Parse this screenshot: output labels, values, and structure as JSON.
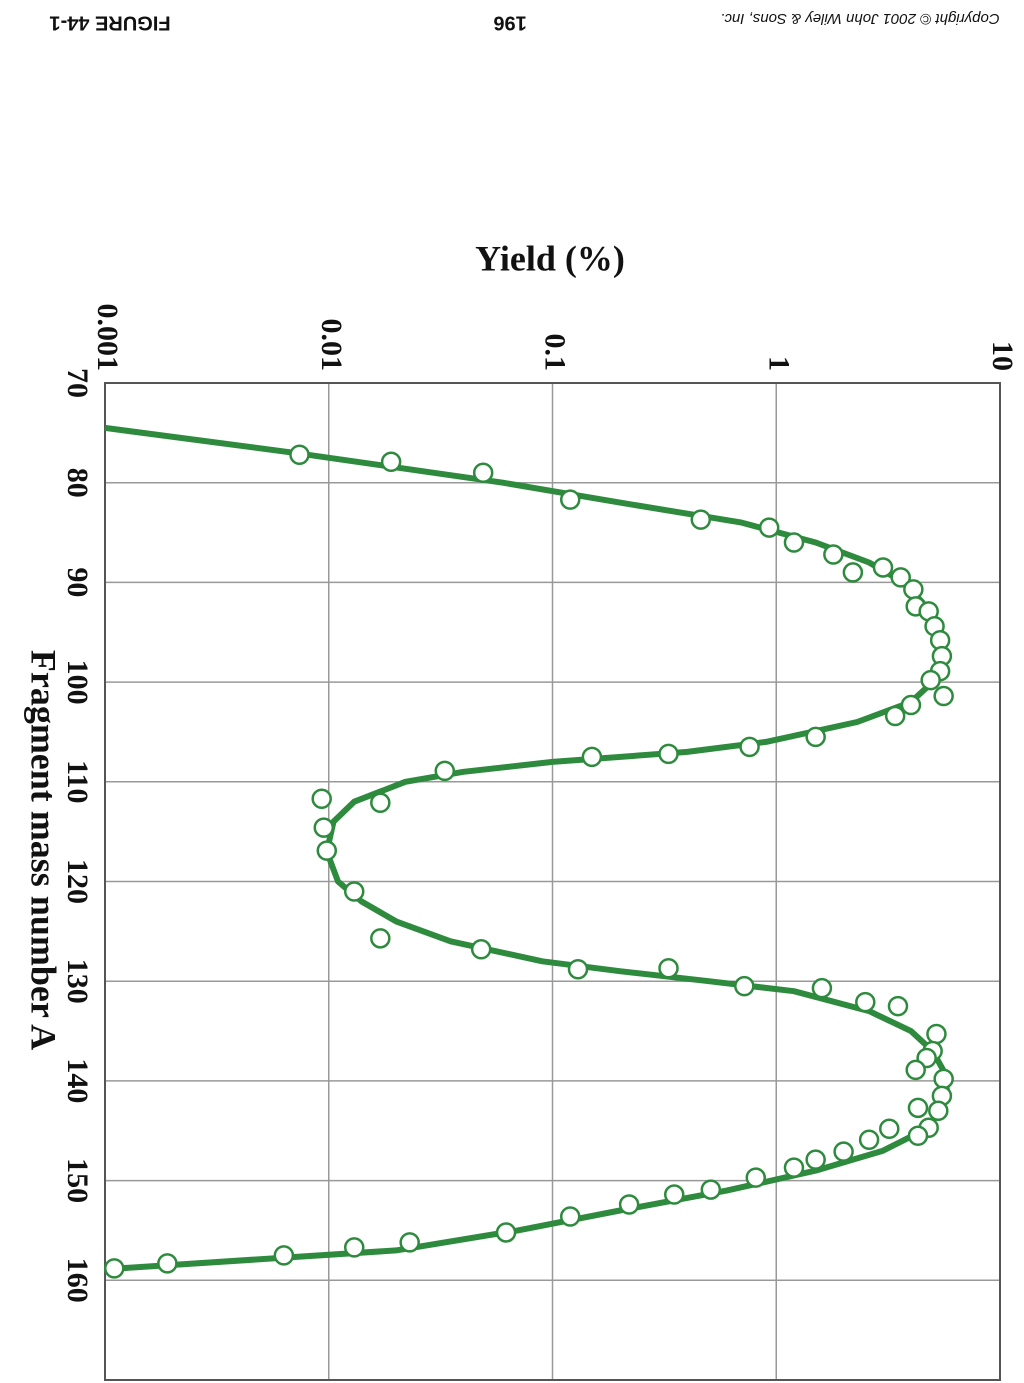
{
  "header": {
    "figure": "FIGURE 44-1",
    "page": "196",
    "copyright": "Copyright © 2001 John Wiley & Sons, Inc."
  },
  "chart_data": {
    "type": "scatter",
    "xlabel": "Fragment mass number A",
    "ylabel": "Yield (%)",
    "xlim": [
      70,
      170
    ],
    "xticks": [
      70,
      80,
      90,
      100,
      110,
      120,
      130,
      140,
      150,
      160
    ],
    "ylim": [
      0.001,
      10
    ],
    "yticks": [
      0.001,
      0.01,
      0.1,
      1,
      10
    ],
    "log_y": true,
    "grid": true,
    "color": "#2e8b3e",
    "points": {
      "x": [
        77.2,
        77.9,
        79,
        81.7,
        83.7,
        84.5,
        86,
        87.2,
        89,
        88.5,
        89.5,
        90.7,
        92.4,
        92.9,
        94.4,
        95.8,
        97.4,
        98.9,
        99.8,
        101.4,
        102.3,
        103.4,
        105.5,
        106.5,
        107.2,
        107.5,
        108.9,
        112.1,
        111.7,
        114.6,
        116.9,
        121,
        125.7,
        126.8,
        128.8,
        128.7,
        130.5,
        130.7,
        132.1,
        132.5,
        135.3,
        137,
        137.7,
        138.9,
        139.8,
        141.5,
        143,
        142.7,
        144.7,
        145.5,
        144.8,
        145.9,
        147.1,
        147.9,
        148.7,
        149.7,
        150.9,
        151.4,
        152.4,
        153.6,
        155.2,
        156.2,
        156.7,
        157.5,
        158.3,
        158.8
      ],
      "values": [
        0.0074,
        0.019,
        0.049,
        0.12,
        0.46,
        0.93,
        1.2,
        1.8,
        2.2,
        3.0,
        3.6,
        4.1,
        4.2,
        4.8,
        5.1,
        5.4,
        5.5,
        5.4,
        4.9,
        5.6,
        4.0,
        3.4,
        1.5,
        0.76,
        0.33,
        0.15,
        0.033,
        0.017,
        0.0093,
        0.0095,
        0.0098,
        0.013,
        0.017,
        0.048,
        0.13,
        0.33,
        0.72,
        1.6,
        2.5,
        3.5,
        5.2,
        5.0,
        4.7,
        4.2,
        5.6,
        5.5,
        5.3,
        4.3,
        4.8,
        4.3,
        3.2,
        2.6,
        2.0,
        1.5,
        1.2,
        0.81,
        0.51,
        0.35,
        0.22,
        0.12,
        0.062,
        0.023,
        0.013,
        0.0063,
        0.0019,
        0.0011
      ]
    },
    "fit": {
      "x": [
        74.5,
        77,
        80,
        82,
        84,
        86,
        88,
        90,
        92,
        94,
        96,
        98,
        100,
        102,
        104,
        106,
        107,
        108,
        109,
        110,
        112,
        114,
        117,
        120,
        122,
        124,
        126,
        128,
        129,
        130,
        131,
        133,
        135,
        137,
        139,
        141,
        143,
        145,
        147,
        149,
        151,
        153,
        155,
        157,
        158.9
      ],
      "values": [
        0.001,
        0.007,
        0.06,
        0.2,
        0.7,
        1.5,
        2.6,
        3.7,
        4.5,
        5.1,
        5.4,
        5.4,
        5.0,
        4.0,
        2.3,
        0.9,
        0.4,
        0.1,
        0.04,
        0.022,
        0.013,
        0.0105,
        0.0098,
        0.011,
        0.014,
        0.02,
        0.035,
        0.09,
        0.2,
        0.5,
        1.2,
        2.6,
        4.0,
        5.0,
        5.6,
        5.8,
        5.5,
        4.5,
        3.0,
        1.5,
        0.6,
        0.2,
        0.07,
        0.02,
        0.001
      ]
    }
  }
}
